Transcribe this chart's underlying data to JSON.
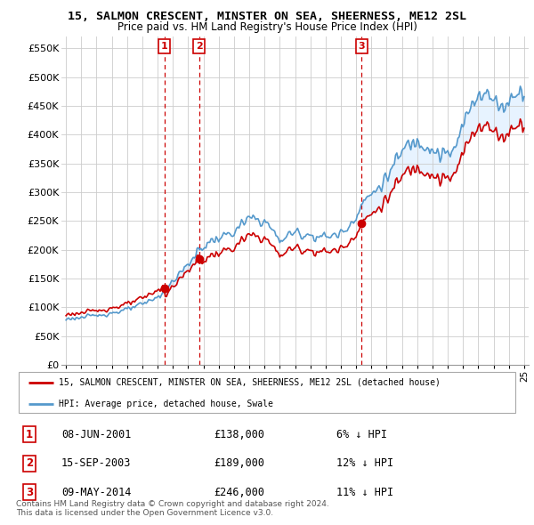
{
  "title": "15, SALMON CRESCENT, MINSTER ON SEA, SHEERNESS, ME12 2SL",
  "subtitle": "Price paid vs. HM Land Registry's House Price Index (HPI)",
  "ylim": [
    0,
    570000
  ],
  "yticks": [
    0,
    50000,
    100000,
    150000,
    200000,
    250000,
    300000,
    350000,
    400000,
    450000,
    500000,
    550000
  ],
  "ytick_labels": [
    "£0",
    "£50K",
    "£100K",
    "£150K",
    "£200K",
    "£250K",
    "£300K",
    "£350K",
    "£400K",
    "£450K",
    "£500K",
    "£550K"
  ],
  "hpi_color": "#5599cc",
  "hpi_fill_color": "#ddeeff",
  "price_color": "#cc0000",
  "vline_color": "#cc0000",
  "transaction_dates": [
    2001.44,
    2003.71,
    2014.35
  ],
  "transaction_labels": [
    "1",
    "2",
    "3"
  ],
  "legend_property": "15, SALMON CRESCENT, MINSTER ON SEA, SHEERNESS, ME12 2SL (detached house)",
  "legend_hpi": "HPI: Average price, detached house, Swale",
  "table_rows": [
    [
      "1",
      "08-JUN-2001",
      "£138,000",
      "6% ↓ HPI"
    ],
    [
      "2",
      "15-SEP-2003",
      "£189,000",
      "12% ↓ HPI"
    ],
    [
      "3",
      "09-MAY-2014",
      "£246,000",
      "11% ↓ HPI"
    ]
  ],
  "footnote1": "Contains HM Land Registry data © Crown copyright and database right 2024.",
  "footnote2": "This data is licensed under the Open Government Licence v3.0.",
  "background_color": "#ffffff",
  "grid_color": "#cccccc",
  "hpi_anchors_x": [
    1995.0,
    1996.0,
    1997.0,
    1998.0,
    1999.0,
    2000.0,
    2001.0,
    2001.5,
    2002.0,
    2003.0,
    2003.75,
    2004.5,
    2005.0,
    2006.0,
    2007.0,
    2008.0,
    2008.5,
    2009.0,
    2009.5,
    2010.0,
    2011.0,
    2012.0,
    2013.0,
    2013.5,
    2014.0,
    2014.5,
    2015.0,
    2016.0,
    2017.0,
    2017.5,
    2018.0,
    2018.5,
    2019.0,
    2019.5,
    2020.0,
    2020.5,
    2021.0,
    2021.5,
    2022.0,
    2022.5,
    2023.0,
    2023.5,
    2024.0,
    2024.5,
    2025.0
  ],
  "hpi_anchors_y": [
    80000,
    82000,
    86000,
    90000,
    96000,
    105000,
    118000,
    128000,
    145000,
    175000,
    200000,
    215000,
    220000,
    230000,
    255000,
    250000,
    235000,
    215000,
    225000,
    230000,
    225000,
    222000,
    228000,
    240000,
    260000,
    285000,
    295000,
    325000,
    370000,
    385000,
    390000,
    385000,
    375000,
    365000,
    365000,
    375000,
    415000,
    450000,
    475000,
    470000,
    460000,
    450000,
    455000,
    480000,
    475000
  ],
  "price1": 138000,
  "price2": 189000,
  "price3": 246000,
  "t1": 2001.44,
  "t2": 2003.71,
  "t3": 2014.35
}
